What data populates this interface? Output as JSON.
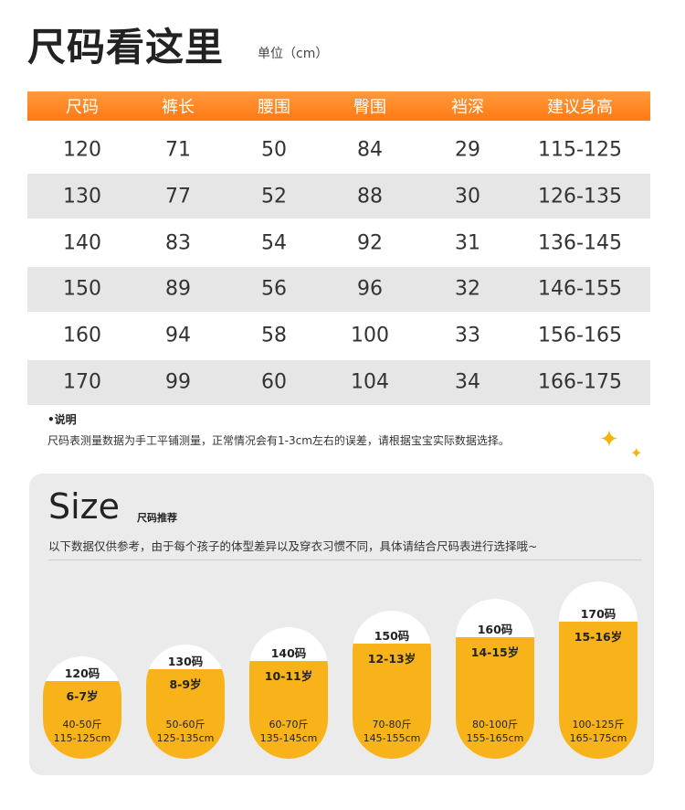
{
  "header": {
    "title": "尺码看这里",
    "unit": "单位（cm）"
  },
  "table": {
    "columns": [
      "尺码",
      "裤长",
      "腰围",
      "臀围",
      "裆深",
      "建议身高"
    ],
    "rows": [
      [
        120,
        71,
        50,
        84,
        29,
        "115-125"
      ],
      [
        130,
        77,
        52,
        88,
        30,
        "126-135"
      ],
      [
        140,
        83,
        54,
        92,
        31,
        "136-145"
      ],
      [
        150,
        89,
        56,
        96,
        32,
        "146-155"
      ],
      [
        160,
        94,
        58,
        100,
        33,
        "156-165"
      ],
      [
        170,
        99,
        60,
        104,
        34,
        "166-175"
      ]
    ]
  },
  "note": {
    "title": "•说明",
    "text": "尺码表测量数据为手工平铺测量，正常情况会有1-3cm左右的误差，请根据宝宝实际数据选择。"
  },
  "recommend": {
    "title": "Size",
    "subtitle": "尺码推荐",
    "description": "以下数据仅供参考，由于每个孩子的体型差异以及穿衣习惯不同，具体请结合尺码表进行选择哦~",
    "sizes": [
      {
        "size": "120码",
        "age": "6-7岁",
        "weight": "40-50斤",
        "height": "115-125cm"
      },
      {
        "size": "130码",
        "age": "8-9岁",
        "weight": "50-60斤",
        "height": "125-135cm"
      },
      {
        "size": "140码",
        "age": "10-11岁",
        "weight": "60-70斤",
        "height": "135-145cm"
      },
      {
        "size": "150码",
        "age": "12-13岁",
        "weight": "70-80斤",
        "height": "145-155cm"
      },
      {
        "size": "160码",
        "age": "14-15岁",
        "weight": "80-100斤",
        "height": "155-165cm"
      },
      {
        "size": "170码",
        "age": "15-16岁",
        "weight": "100-125斤",
        "height": "165-175cm"
      }
    ]
  }
}
